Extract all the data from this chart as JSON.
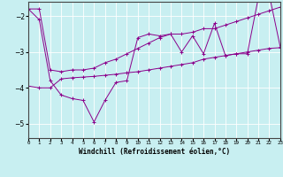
{
  "xlabel": "Windchill (Refroidissement éolien,°C)",
  "background_color": "#c8eff1",
  "line_color": "#8b008b",
  "grid_color": "#ffffff",
  "x_values": [
    0,
    1,
    2,
    3,
    4,
    5,
    6,
    7,
    8,
    9,
    10,
    11,
    12,
    13,
    14,
    15,
    16,
    17,
    18,
    19,
    20,
    21,
    22,
    23
  ],
  "main_line": [
    -1.8,
    -2.1,
    -3.8,
    -4.2,
    -4.3,
    -4.35,
    -4.95,
    -4.35,
    -3.85,
    -3.8,
    -2.6,
    -2.5,
    -2.55,
    -2.5,
    -3.0,
    -2.55,
    -3.05,
    -2.2,
    -3.1,
    -3.05,
    -3.05,
    -1.5,
    -1.4,
    -2.85
  ],
  "upper_line": [
    -1.8,
    -1.8,
    -3.5,
    -3.55,
    -3.5,
    -3.5,
    -3.45,
    -3.3,
    -3.2,
    -3.05,
    -2.9,
    -2.75,
    -2.6,
    -2.5,
    -2.5,
    -2.45,
    -2.35,
    -2.35,
    -2.25,
    -2.15,
    -2.05,
    -1.95,
    -1.85,
    -1.75
  ],
  "lower_line": [
    -3.95,
    -4.0,
    -4.0,
    -3.75,
    -3.72,
    -3.7,
    -3.68,
    -3.65,
    -3.62,
    -3.58,
    -3.55,
    -3.5,
    -3.45,
    -3.4,
    -3.35,
    -3.3,
    -3.2,
    -3.15,
    -3.1,
    -3.05,
    -3.0,
    -2.95,
    -2.9,
    -2.88
  ],
  "xlim": [
    0,
    23
  ],
  "ylim": [
    -5.4,
    -1.6
  ],
  "yticks": [
    -5,
    -4,
    -3,
    -2
  ],
  "xticks": [
    0,
    1,
    2,
    3,
    4,
    5,
    6,
    7,
    8,
    9,
    10,
    11,
    12,
    13,
    14,
    15,
    16,
    17,
    18,
    19,
    20,
    21,
    22,
    23
  ]
}
